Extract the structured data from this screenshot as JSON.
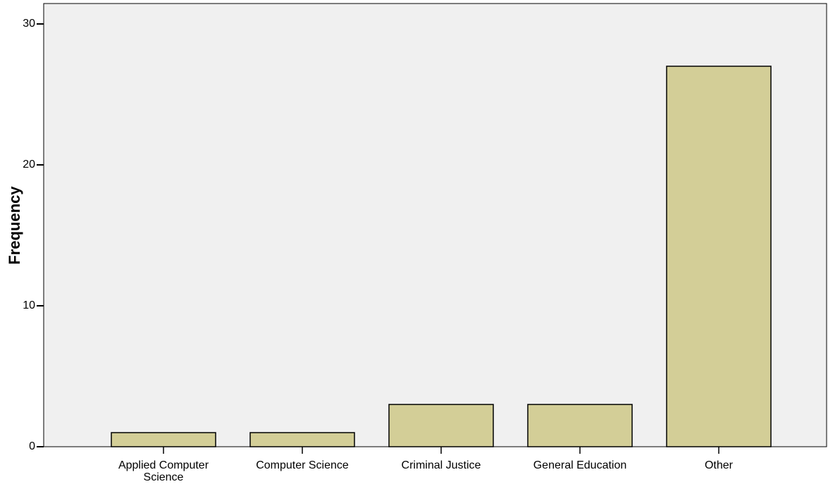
{
  "chart_data": {
    "type": "bar",
    "y_label": "Frequency",
    "categories": [
      "Applied Computer Science",
      "Computer Science",
      "Criminal Justice",
      "General Education",
      "Other"
    ],
    "values": [
      1,
      1,
      3,
      3,
      27
    ],
    "color": "#d3ce97",
    "ylim": [
      0,
      31.45
    ],
    "yticks": [
      0,
      10,
      20,
      30
    ]
  }
}
